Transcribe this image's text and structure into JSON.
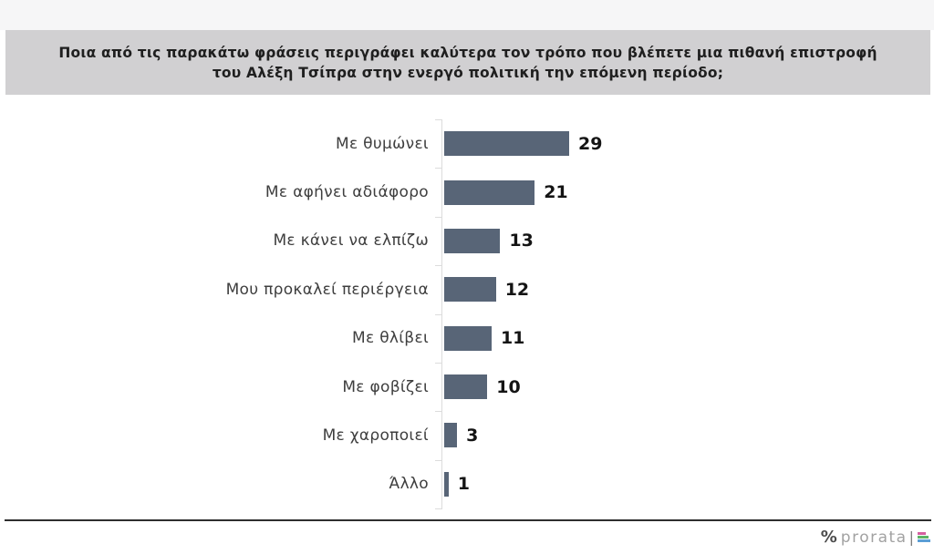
{
  "header": {
    "title_line1": "Ποια από τις παρακάτω φράσεις περιγράφει καλύτερα τον τρόπο που βλέπετε μια πιθανή επιστροφή",
    "title_line2": "του Αλέξη Τσίπρα στην ενεργό πολιτική την επόμενη περίοδο;"
  },
  "chart_data": {
    "type": "bar",
    "orientation": "horizontal",
    "title": "Ποια από τις παρακάτω φράσεις περιγράφει καλύτερα τον τρόπο που βλέπετε μια πιθανή επιστροφή του Αλέξη Τσίπρα στην ενεργό πολιτική την επόμενη περίοδο;",
    "categories": [
      "Με θυμώνει",
      "Με αφήνει αδιάφορο",
      "Με κάνει να ελπίζω",
      "Μου προκαλεί περιέργεια",
      "Με θλίβει",
      "Με φοβίζει",
      "Με χαροποιεί",
      "Άλλο"
    ],
    "values": [
      29,
      21,
      13,
      12,
      11,
      10,
      3,
      1
    ],
    "xlim": [
      0,
      29
    ],
    "grid": false,
    "value_labels_shown": true,
    "bar_color": "#586577",
    "axis_line_color": "#dcdcdc"
  },
  "footer": {
    "logo_percent": "%",
    "logo_text": "prorata",
    "logo_separator": "|",
    "logo_bar_colors": [
      "#d55fa0",
      "#5cb466",
      "#5b9ed6"
    ]
  },
  "colors": {
    "header_bg": "#d1d0d2",
    "top_strip_bg": "#f6f6f7",
    "label_text": "#3e3e3e",
    "value_text": "#141414",
    "divider": "#2e2e2e"
  }
}
